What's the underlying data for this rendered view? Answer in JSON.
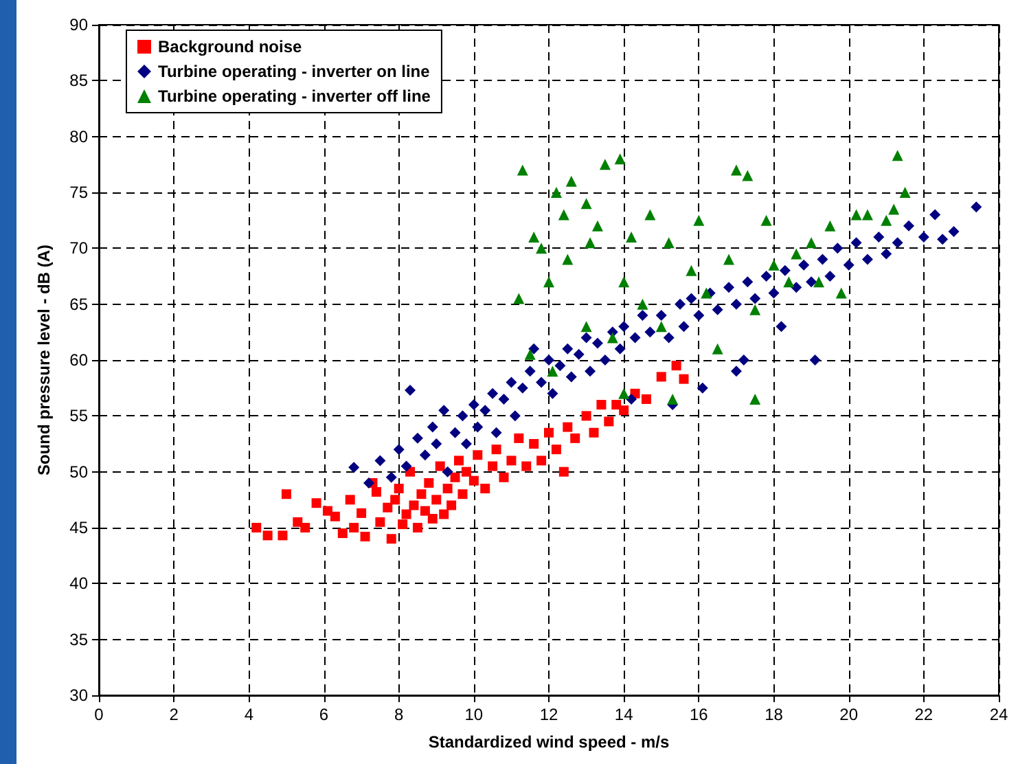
{
  "chart_data": {
    "type": "scatter",
    "xlabel": "Standardized wind speed - m/s",
    "ylabel": "Sound pressure level - dB (A)",
    "xlim": [
      0,
      24
    ],
    "xticks": [
      0,
      2,
      4,
      6,
      8,
      10,
      12,
      14,
      16,
      18,
      20,
      22,
      24
    ],
    "ylim": [
      30,
      90
    ],
    "yticks": [
      30,
      35,
      40,
      45,
      50,
      55,
      60,
      65,
      70,
      75,
      80,
      85,
      90
    ],
    "grid": true,
    "legend": "top left",
    "series": [
      {
        "name": "Background noise",
        "color": "#ff0000",
        "marker": "square",
        "x": [
          4.2,
          4.5,
          4.9,
          5.0,
          5.3,
          5.5,
          5.8,
          6.1,
          6.3,
          6.5,
          6.7,
          6.8,
          7.0,
          7.1,
          7.3,
          7.4,
          7.5,
          7.7,
          7.8,
          7.9,
          8.0,
          8.1,
          8.2,
          8.3,
          8.4,
          8.5,
          8.6,
          8.7,
          8.8,
          8.9,
          9.0,
          9.1,
          9.2,
          9.3,
          9.4,
          9.5,
          9.6,
          9.7,
          9.8,
          10.0,
          10.1,
          10.3,
          10.5,
          10.6,
          10.8,
          11.0,
          11.2,
          11.4,
          11.6,
          11.8,
          12.0,
          12.2,
          12.4,
          12.5,
          12.7,
          13.0,
          13.2,
          13.4,
          13.6,
          13.8,
          14.0,
          14.3,
          14.6,
          15.0,
          15.4,
          15.6
        ],
        "values": [
          45,
          44.3,
          44.3,
          48,
          45.5,
          45,
          47.2,
          46.5,
          46,
          44.5,
          47.5,
          45,
          46.3,
          44.2,
          49,
          48.2,
          45.5,
          46.8,
          44,
          47.5,
          48.5,
          45.3,
          46.2,
          50,
          47,
          45,
          48,
          46.5,
          49,
          45.8,
          47.5,
          50.5,
          46.2,
          48.5,
          47,
          49.5,
          51,
          48,
          50,
          49.2,
          51.5,
          48.5,
          50.5,
          52,
          49.5,
          51,
          53,
          50.5,
          52.5,
          51,
          53.5,
          52,
          50,
          54,
          53,
          55,
          53.5,
          56,
          54.5,
          56,
          55.5,
          57,
          56.5,
          58.5,
          59.5,
          58.3
        ]
      },
      {
        "name": "Turbine operating - inverter on line",
        "color": "#000080",
        "marker": "diamond",
        "x": [
          6.8,
          7.2,
          7.5,
          7.8,
          8.0,
          8.2,
          8.3,
          8.5,
          8.7,
          8.9,
          9.0,
          9.2,
          9.3,
          9.5,
          9.7,
          9.8,
          10.0,
          10.1,
          10.3,
          10.5,
          10.6,
          10.8,
          11.0,
          11.1,
          11.3,
          11.5,
          11.6,
          11.8,
          12.0,
          12.1,
          12.3,
          12.5,
          12.6,
          12.8,
          13.0,
          13.1,
          13.3,
          13.5,
          13.7,
          13.9,
          14.0,
          14.2,
          14.3,
          14.5,
          14.7,
          15.0,
          15.2,
          15.3,
          15.5,
          15.6,
          15.8,
          16.0,
          16.1,
          16.3,
          16.5,
          16.8,
          17.0,
          17.2,
          17.3,
          17.5,
          17.8,
          18.0,
          18.2,
          18.3,
          18.6,
          18.8,
          19.0,
          19.3,
          19.5,
          19.7,
          20.0,
          20.2,
          20.5,
          20.8,
          21.0,
          21.3,
          21.6,
          22.0,
          22.3,
          22.5,
          22.8,
          23.4,
          17.0,
          19.1
        ],
        "values": [
          50.4,
          49,
          51,
          49.5,
          52,
          50.5,
          57.3,
          53,
          51.5,
          54,
          52.5,
          55.5,
          50,
          53.5,
          55,
          52.5,
          56,
          54,
          55.5,
          57,
          53.5,
          56.5,
          58,
          55,
          57.5,
          59,
          61,
          58,
          60,
          57,
          59.5,
          61,
          58.5,
          60.5,
          62,
          59,
          61.5,
          60,
          62.5,
          61,
          63,
          56.5,
          62,
          64,
          62.5,
          64,
          62,
          56,
          65,
          63,
          65.5,
          64,
          57.5,
          66,
          64.5,
          66.5,
          65,
          60,
          67,
          65.5,
          67.5,
          66,
          63,
          68,
          66.5,
          68.5,
          67,
          69,
          67.5,
          70,
          68.5,
          70.5,
          69,
          71,
          69.5,
          70.5,
          72,
          71,
          73,
          70.8,
          71.5,
          73.7,
          59,
          60
        ]
      },
      {
        "name": "Turbine operating - inverter off line",
        "color": "#008000",
        "marker": "triangle",
        "x": [
          11.2,
          11.3,
          11.5,
          11.6,
          11.8,
          12.0,
          12.2,
          12.4,
          12.5,
          12.6,
          13.0,
          13.1,
          13.3,
          13.5,
          13.7,
          13.9,
          14.0,
          14.2,
          14.5,
          14.7,
          15.0,
          15.2,
          15.3,
          15.8,
          16.0,
          16.2,
          16.5,
          16.8,
          17.0,
          17.3,
          17.5,
          17.5,
          17.8,
          18.0,
          18.4,
          18.6,
          19.0,
          19.2,
          19.5,
          19.8,
          20.2,
          20.5,
          21.0,
          21.3,
          21.5,
          21.2,
          14.0,
          13.0,
          12.1
        ],
        "values": [
          65.5,
          77,
          60.5,
          71,
          70,
          67,
          75,
          73,
          69,
          76,
          74,
          70.5,
          72,
          77.5,
          62,
          78,
          67,
          71,
          65,
          73,
          63,
          70.5,
          56.5,
          68,
          72.5,
          66,
          61,
          69,
          77,
          76.5,
          64.5,
          56.5,
          72.5,
          68.5,
          67,
          69.5,
          70.5,
          67,
          72,
          66,
          73,
          73,
          72.5,
          78.3,
          75,
          73.5,
          57,
          63,
          59
        ]
      }
    ]
  }
}
